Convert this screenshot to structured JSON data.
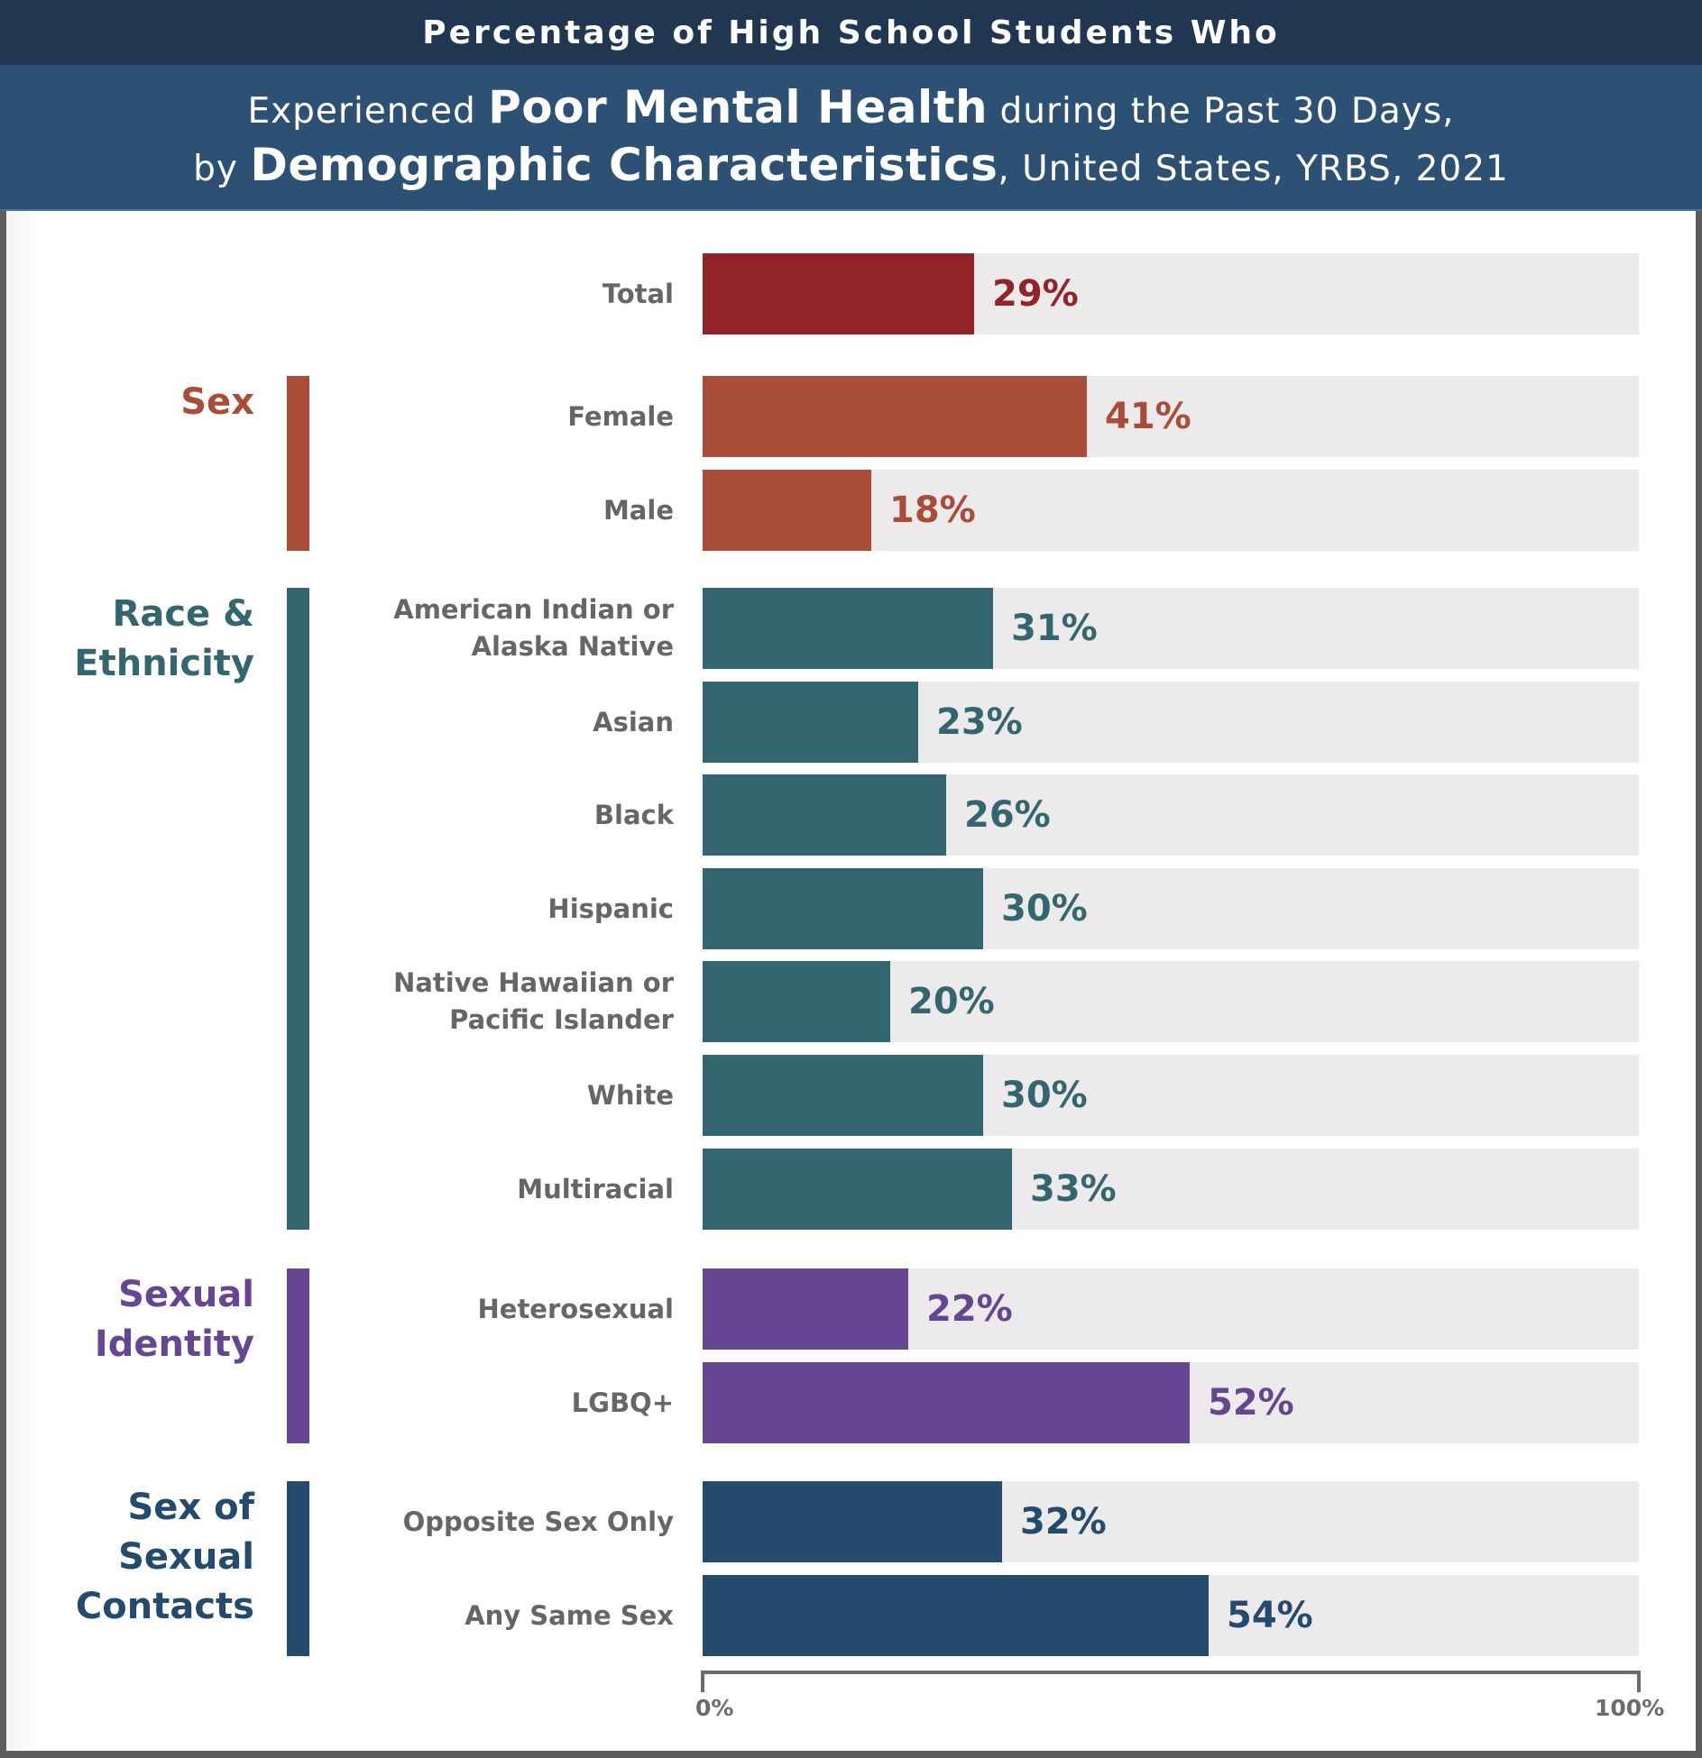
{
  "header": {
    "line1": "Percentage of High School Students Who",
    "line2_pre": "Experienced ",
    "line2_emph": "Poor Mental Health",
    "line2_post": " during the Past 30 Days,",
    "line3_pre": "by ",
    "line3_emph": "Demographic Characteristics",
    "line3_post": ", United States, YRBS, 2021"
  },
  "colors": {
    "total": "#93232a",
    "sex": "#a94c38",
    "race": "#346670",
    "sexual_identity": "#664592",
    "contacts": "#244a6d",
    "track": "#eceaeb",
    "label_gray": "#666666"
  },
  "chart_data": {
    "type": "bar",
    "orientation": "horizontal",
    "title": "Percentage of High School Students Who Experienced Poor Mental Health during the Past 30 Days, by Demographic Characteristics, United States, YRBS, 2021",
    "xlabel": "",
    "ylabel": "",
    "xlim": [
      0,
      100
    ],
    "x_ticks": [
      "0%",
      "100%"
    ],
    "unit": "%",
    "groups": [
      {
        "key": "total",
        "label": "",
        "rows": [
          {
            "label": "Total",
            "value": 29,
            "value_label": "29%"
          }
        ]
      },
      {
        "key": "sex",
        "label": "Sex",
        "rows": [
          {
            "label": "Female",
            "value": 41,
            "value_label": "41%"
          },
          {
            "label": "Male",
            "value": 18,
            "value_label": "18%"
          }
        ]
      },
      {
        "key": "race",
        "label": "Race & Ethnicity",
        "rows": [
          {
            "label": "American Indian or Alaska Native",
            "value": 31,
            "value_label": "31%"
          },
          {
            "label": "Asian",
            "value": 23,
            "value_label": "23%"
          },
          {
            "label": "Black",
            "value": 26,
            "value_label": "26%"
          },
          {
            "label": "Hispanic",
            "value": 30,
            "value_label": "30%"
          },
          {
            "label": "Native Hawaiian or Pacific Islander",
            "value": 20,
            "value_label": "20%"
          },
          {
            "label": "White",
            "value": 30,
            "value_label": "30%"
          },
          {
            "label": "Multiracial",
            "value": 33,
            "value_label": "33%"
          }
        ]
      },
      {
        "key": "sexual_identity",
        "label": "Sexual Identity",
        "rows": [
          {
            "label": "Heterosexual",
            "value": 22,
            "value_label": "22%"
          },
          {
            "label": "LGBQ+",
            "value": 52,
            "value_label": "52%"
          }
        ]
      },
      {
        "key": "contacts",
        "label": "Sex of Sexual Contacts",
        "rows": [
          {
            "label": "Opposite Sex Only",
            "value": 32,
            "value_label": "32%"
          },
          {
            "label": "Any Same Sex",
            "value": 54,
            "value_label": "54%"
          }
        ]
      }
    ]
  },
  "labels_multiline": {
    "race": [
      "Race &",
      "Ethnicity"
    ],
    "sexual_identity": [
      "Sexual",
      "Identity"
    ],
    "contacts": [
      "Sex of",
      "Sexual",
      "Contacts"
    ],
    "American Indian or Alaska Native": [
      "American Indian or",
      "Alaska Native"
    ],
    "Native Hawaiian or Pacific Islander": [
      "Native Hawaiian or",
      "Pacific Islander"
    ]
  }
}
